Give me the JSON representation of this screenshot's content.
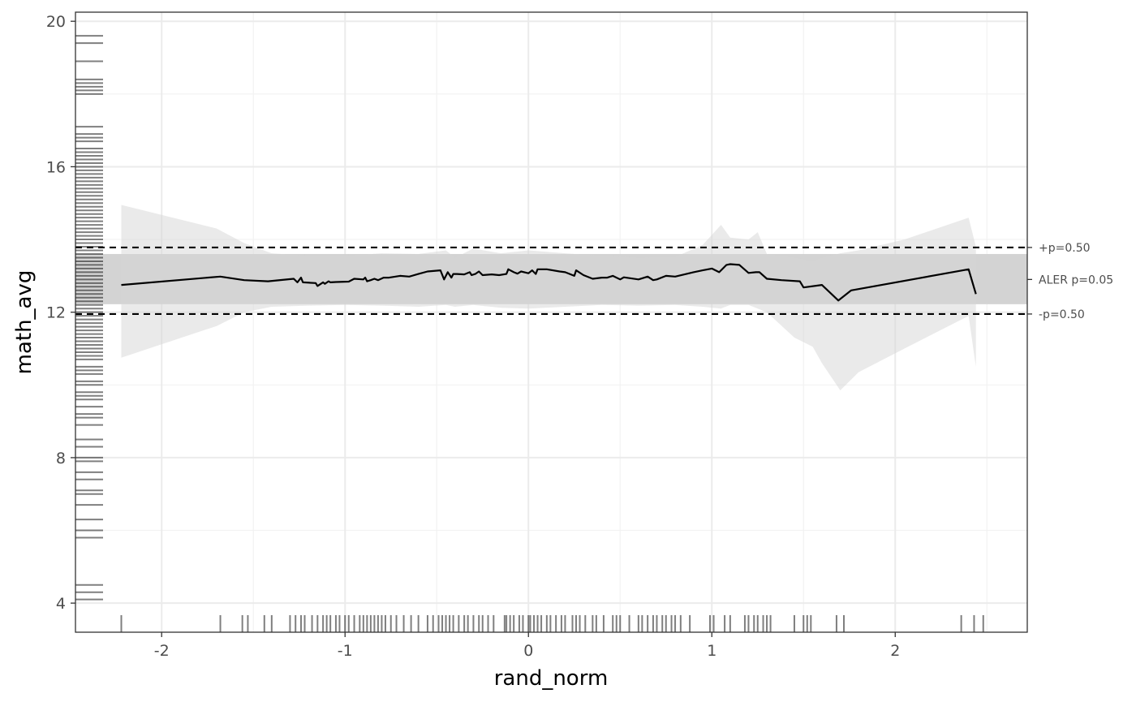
{
  "chart_data": {
    "type": "line",
    "xlabel": "rand_norm",
    "ylabel": "math_avg",
    "xlim": [
      -2.47,
      2.72
    ],
    "ylim": [
      3.2,
      20.25
    ],
    "x_ticks": [
      -2,
      -1,
      0,
      1,
      2
    ],
    "y_ticks": [
      4,
      8,
      12,
      16,
      20
    ],
    "grid": true,
    "legend": "none",
    "aler_band": {
      "label": "ALER p=0.05",
      "ymin": 12.22,
      "ymax": 13.6,
      "mid": 12.9
    },
    "reference_lines": [
      {
        "label": "+p=0.50",
        "y": 13.78,
        "style": "dashed"
      },
      {
        "label": "-p=0.50",
        "y": 11.95,
        "style": "dashed"
      }
    ],
    "series": [
      {
        "x": [
          -2.22,
          -1.68,
          -1.55,
          -1.42,
          -1.28,
          -1.26,
          -1.24,
          -1.23,
          -1.16,
          -1.15,
          -1.12,
          -1.11,
          -1.09,
          -1.08,
          -1.05,
          -0.98,
          -0.95,
          -0.9,
          -0.89,
          -0.88,
          -0.86,
          -0.84,
          -0.82,
          -0.79,
          -0.76,
          -0.7,
          -0.65,
          -0.6,
          -0.55,
          -0.48,
          -0.46,
          -0.44,
          -0.42,
          -0.41,
          -0.39,
          -0.35,
          -0.32,
          -0.31,
          -0.29,
          -0.27,
          -0.25,
          -0.2,
          -0.16,
          -0.12,
          -0.11,
          -0.08,
          -0.06,
          -0.04,
          0.0,
          0.02,
          0.04,
          0.05,
          0.07,
          0.1,
          0.17,
          0.2,
          0.25,
          0.26,
          0.3,
          0.35,
          0.4,
          0.43,
          0.46,
          0.5,
          0.52,
          0.6,
          0.65,
          0.68,
          0.7,
          0.75,
          0.8,
          0.9,
          0.95,
          1.0,
          1.04,
          1.08,
          1.1,
          1.15,
          1.2,
          1.24,
          1.26,
          1.3,
          1.38,
          1.48,
          1.5,
          1.6,
          1.69,
          1.76,
          2.4,
          2.44
        ],
        "y": [
          12.75,
          12.98,
          12.88,
          12.85,
          12.92,
          12.82,
          12.95,
          12.82,
          12.8,
          12.72,
          12.82,
          12.78,
          12.85,
          12.82,
          12.83,
          12.84,
          12.92,
          12.9,
          12.95,
          12.85,
          12.88,
          12.92,
          12.88,
          12.95,
          12.95,
          13.0,
          12.98,
          13.05,
          13.12,
          13.15,
          12.9,
          13.1,
          12.95,
          13.05,
          13.05,
          13.04,
          13.1,
          13.02,
          13.05,
          13.12,
          13.02,
          13.04,
          13.02,
          13.05,
          13.18,
          13.1,
          13.06,
          13.12,
          13.07,
          13.15,
          13.05,
          13.18,
          13.18,
          13.18,
          13.12,
          13.1,
          13.0,
          13.15,
          13.02,
          12.92,
          12.95,
          12.95,
          13.0,
          12.9,
          12.96,
          12.9,
          12.98,
          12.88,
          12.9,
          13.0,
          12.98,
          13.1,
          13.15,
          13.2,
          13.1,
          13.3,
          13.32,
          13.3,
          13.08,
          13.1,
          13.1,
          12.92,
          12.88,
          12.85,
          12.68,
          12.75,
          12.32,
          12.6,
          13.18,
          12.5
        ]
      },
      {
        "name": "ci_upper",
        "x": [
          -2.22,
          -1.7,
          -1.55,
          -1.4,
          -1.2,
          -1.0,
          -0.8,
          -0.6,
          -0.45,
          -0.4,
          -0.3,
          -0.15,
          0.0,
          0.2,
          0.4,
          0.6,
          0.8,
          0.95,
          1.05,
          1.1,
          1.2,
          1.25,
          1.3,
          1.45,
          1.55,
          1.6,
          1.7,
          1.8,
          2.05,
          2.4,
          2.44
        ],
        "y": [
          14.95,
          14.3,
          13.9,
          13.62,
          13.55,
          13.55,
          13.62,
          13.6,
          13.7,
          13.5,
          13.75,
          13.62,
          13.7,
          13.62,
          13.55,
          13.5,
          13.52,
          13.85,
          14.4,
          14.05,
          14.0,
          14.2,
          13.6,
          13.5,
          13.4,
          13.5,
          13.62,
          13.7,
          14.0,
          14.6,
          13.8
        ]
      },
      {
        "name": "ci_lower",
        "x": [
          -2.22,
          -1.7,
          -1.55,
          -1.4,
          -1.2,
          -1.0,
          -0.8,
          -0.6,
          -0.45,
          -0.4,
          -0.3,
          -0.15,
          0.0,
          0.2,
          0.4,
          0.6,
          0.8,
          0.95,
          1.05,
          1.1,
          1.2,
          1.25,
          1.3,
          1.45,
          1.55,
          1.6,
          1.7,
          1.8,
          2.05,
          2.4,
          2.44
        ],
        "y": [
          10.75,
          11.62,
          12.0,
          12.15,
          12.18,
          12.2,
          12.18,
          12.15,
          12.2,
          12.15,
          12.2,
          12.12,
          12.1,
          12.15,
          12.2,
          12.18,
          12.2,
          12.15,
          12.1,
          12.2,
          12.2,
          12.1,
          12.0,
          11.3,
          11.05,
          10.6,
          9.85,
          10.35,
          11.0,
          11.9,
          10.5
        ]
      }
    ],
    "rug_x": [
      -2.22,
      -1.68,
      -1.56,
      -1.53,
      -1.44,
      -1.4,
      -1.3,
      -1.27,
      -1.24,
      -1.22,
      -1.18,
      -1.15,
      -1.12,
      -1.1,
      -1.08,
      -1.05,
      -1.03,
      -1.0,
      -0.98,
      -0.95,
      -0.92,
      -0.9,
      -0.88,
      -0.86,
      -0.84,
      -0.82,
      -0.8,
      -0.78,
      -0.75,
      -0.72,
      -0.68,
      -0.64,
      -0.6,
      -0.55,
      -0.52,
      -0.49,
      -0.47,
      -0.45,
      -0.43,
      -0.41,
      -0.38,
      -0.35,
      -0.33,
      -0.3,
      -0.27,
      -0.25,
      -0.22,
      -0.19,
      -0.13,
      -0.12,
      -0.1,
      -0.08,
      -0.05,
      -0.03,
      0.0,
      0.01,
      0.03,
      0.05,
      0.07,
      0.1,
      0.12,
      0.15,
      0.18,
      0.2,
      0.24,
      0.26,
      0.28,
      0.31,
      0.35,
      0.37,
      0.41,
      0.46,
      0.48,
      0.5,
      0.55,
      0.6,
      0.62,
      0.65,
      0.68,
      0.7,
      0.73,
      0.75,
      0.78,
      0.8,
      0.83,
      0.88,
      0.99,
      1.01,
      1.07,
      1.1,
      1.18,
      1.2,
      1.23,
      1.25,
      1.28,
      1.3,
      1.32,
      1.45,
      1.5,
      1.52,
      1.54,
      1.68,
      1.72,
      2.36,
      2.43,
      2.48
    ],
    "rug_y": [
      4.1,
      4.3,
      4.5,
      5.8,
      6.0,
      6.3,
      6.7,
      7.0,
      7.1,
      7.4,
      7.6,
      7.9,
      8.0,
      8.3,
      8.5,
      8.9,
      9.1,
      9.2,
      9.4,
      9.6,
      9.7,
      9.8,
      10.0,
      10.1,
      10.3,
      10.4,
      10.5,
      10.7,
      10.8,
      10.9,
      11.0,
      11.1,
      11.2,
      11.3,
      11.4,
      11.5,
      11.6,
      11.7,
      11.8,
      11.9,
      12.0,
      12.1,
      12.2,
      12.3,
      12.4,
      12.5,
      12.6,
      12.7,
      12.8,
      12.9,
      13.0,
      13.1,
      13.2,
      13.3,
      13.4,
      13.5,
      13.6,
      13.7,
      13.8,
      13.9,
      14.0,
      14.1,
      14.2,
      14.3,
      14.4,
      14.5,
      14.6,
      14.7,
      14.8,
      14.9,
      15.0,
      15.1,
      15.2,
      15.3,
      15.4,
      15.5,
      15.6,
      15.7,
      15.8,
      15.9,
      16.0,
      16.1,
      16.2,
      16.3,
      16.4,
      16.5,
      16.7,
      16.8,
      16.9,
      17.1,
      18.0,
      18.1,
      18.2,
      18.3,
      18.4,
      18.9,
      19.4,
      19.6
    ]
  }
}
